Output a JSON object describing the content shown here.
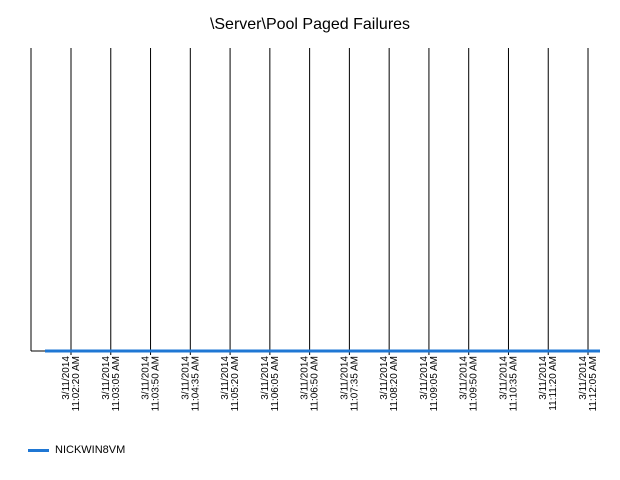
{
  "chart_data": {
    "type": "line",
    "title": "\\Server\\Pool Paged Failures",
    "x": [
      "3/11/2014 11:02:20 AM",
      "3/11/2014 11:03:05 AM",
      "3/11/2014 11:03:50 AM",
      "3/11/2014 11:04:35 AM",
      "3/11/2014 11:05:20 AM",
      "3/11/2014 11:06:05 AM",
      "3/11/2014 11:06:50 AM",
      "3/11/2014 11:07:35 AM",
      "3/11/2014 11:08:20 AM",
      "3/11/2014 11:09:05 AM",
      "3/11/2014 11:09:50 AM",
      "3/11/2014 11:10:35 AM",
      "3/11/2014 11:11:20 AM",
      "3/11/2014 11:12:05 AM"
    ],
    "tick_labels": [
      {
        "date": "3/11/2014",
        "time": "11:02:20 AM"
      },
      {
        "date": "3/11/2014",
        "time": "11:03:05 AM"
      },
      {
        "date": "3/11/2014",
        "time": "11:03:50 AM"
      },
      {
        "date": "3/11/2014",
        "time": "11:04:35 AM"
      },
      {
        "date": "3/11/2014",
        "time": "11:05:20 AM"
      },
      {
        "date": "3/11/2014",
        "time": "11:06:05 AM"
      },
      {
        "date": "3/11/2014",
        "time": "11:06:50 AM"
      },
      {
        "date": "3/11/2014",
        "time": "11:07:35 AM"
      },
      {
        "date": "3/11/2014",
        "time": "11:08:20 AM"
      },
      {
        "date": "3/11/2014",
        "time": "11:09:05 AM"
      },
      {
        "date": "3/11/2014",
        "time": "11:09:50 AM"
      },
      {
        "date": "3/11/2014",
        "time": "11:10:35 AM"
      },
      {
        "date": "3/11/2014",
        "time": "11:11:20 AM"
      },
      {
        "date": "3/11/2014",
        "time": "11:12:05 AM"
      }
    ],
    "series": [
      {
        "name": "NICKWIN8VM",
        "color": "#1f77d4",
        "values": [
          0,
          0,
          0,
          0,
          0,
          0,
          0,
          0,
          0,
          0,
          0,
          0,
          0,
          0
        ]
      }
    ],
    "ylim": [
      0,
      1
    ],
    "grid": "vertical",
    "legend_position": "bottom-left"
  }
}
